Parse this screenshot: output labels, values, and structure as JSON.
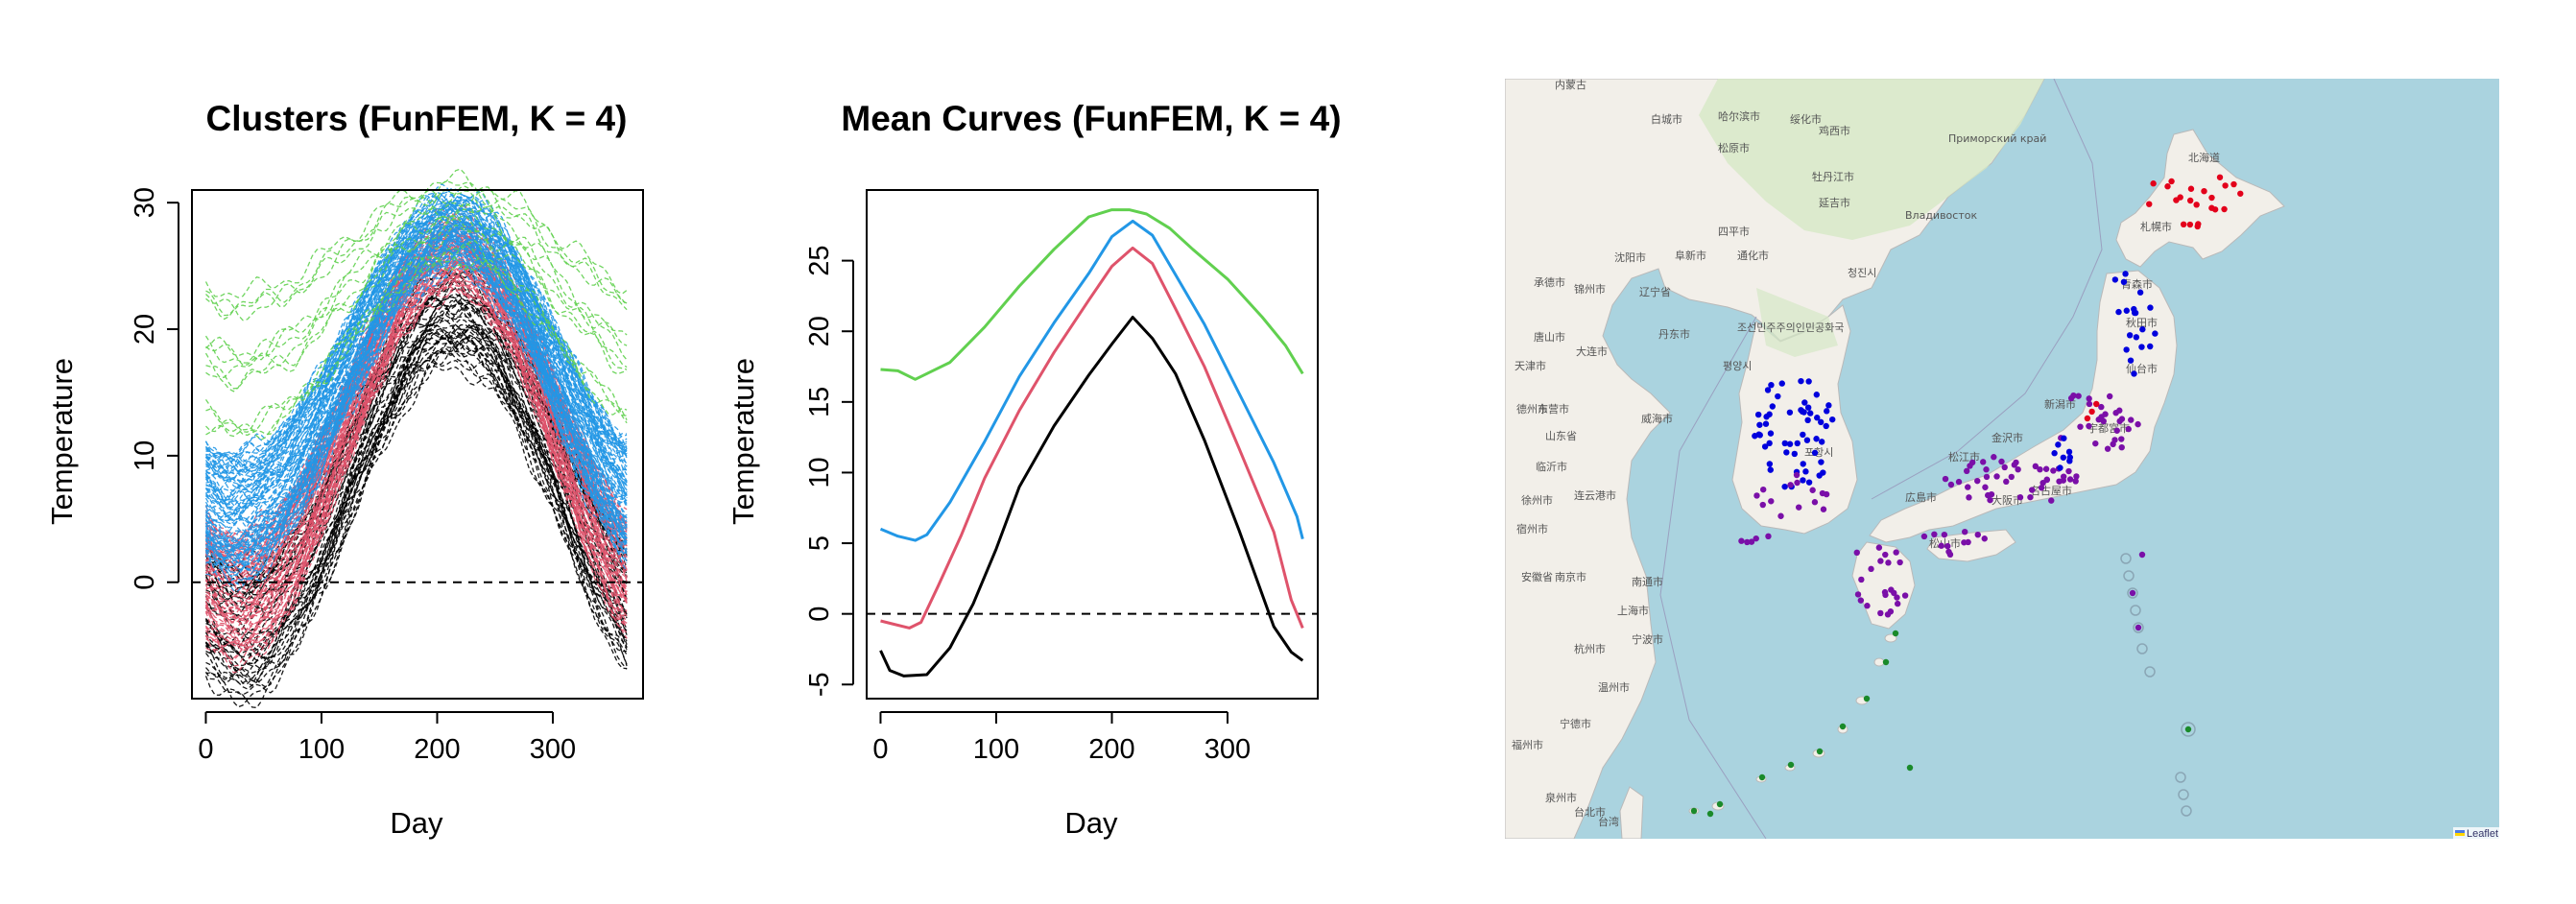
{
  "colors": {
    "cluster_black": "#000000",
    "cluster_red": "#DF536B",
    "cluster_green": "#61D04F",
    "cluster_blue": "#2297E6",
    "sea": "#aad3df",
    "land": "#f2efe9",
    "station_north": "#e3001b",
    "station_central": "#0000dd",
    "station_west": "#7a0fa8",
    "station_south": "#1a8a2a"
  },
  "chart_data": [
    {
      "type": "line",
      "title": "Clusters (FunFEM, K = 4)",
      "xlabel": "Day",
      "ylabel": "Temperature",
      "xlim": [
        -12,
        378
      ],
      "ylim": [
        -9.2,
        31
      ],
      "xticks": [
        0,
        100,
        200,
        300
      ],
      "yticks": [
        0,
        10,
        20,
        30
      ],
      "hline": 0,
      "grid": false,
      "series": [
        {
          "color_key": "cluster_black",
          "count": 46,
          "amp": 12.5,
          "mid": 8.3,
          "min_day": 32,
          "peak_day": 215,
          "spread": 4.0
        },
        {
          "color_key": "cluster_red",
          "count": 70,
          "amp": 13.4,
          "mid": 12.5,
          "min_day": 28,
          "peak_day": 214,
          "spread": 3.4
        },
        {
          "color_key": "cluster_blue",
          "count": 90,
          "amp": 11.3,
          "mid": 16.4,
          "min_day": 25,
          "peak_day": 215,
          "spread": 3.6
        },
        {
          "color_key": "cluster_green",
          "count": 14,
          "amp": 6.0,
          "mid": 22.5,
          "min_day": 28,
          "peak_day": 218,
          "spread": 5.0
        }
      ]
    },
    {
      "type": "line",
      "title": "Mean Curves (FunFEM, K = 4)",
      "xlabel": "Day",
      "ylabel": "Temperature",
      "xlim": [
        -12,
        378
      ],
      "ylim": [
        -6,
        30
      ],
      "xticks": [
        0,
        100,
        200,
        300
      ],
      "yticks": [
        -5,
        0,
        5,
        10,
        15,
        20,
        25
      ],
      "hline": 0,
      "grid": false,
      "series": [
        {
          "color_key": "cluster_green",
          "x": [
            0,
            15,
            30,
            60,
            90,
            120,
            150,
            180,
            200,
            215,
            230,
            250,
            270,
            300,
            330,
            350,
            365
          ],
          "y": [
            17.3,
            17.2,
            16.6,
            17.8,
            20.3,
            23.2,
            25.8,
            28.1,
            28.6,
            28.6,
            28.3,
            27.3,
            25.8,
            23.7,
            21.0,
            19.0,
            17.0
          ]
        },
        {
          "color_key": "cluster_blue",
          "x": [
            0,
            15,
            30,
            40,
            60,
            90,
            120,
            150,
            180,
            200,
            218,
            235,
            255,
            280,
            310,
            340,
            360,
            365
          ],
          "y": [
            6.0,
            5.5,
            5.2,
            5.6,
            7.9,
            12.2,
            16.8,
            20.6,
            24.1,
            26.7,
            27.8,
            26.8,
            24.0,
            20.5,
            15.6,
            10.7,
            6.9,
            5.3
          ]
        },
        {
          "color_key": "cluster_red",
          "x": [
            0,
            10,
            25,
            35,
            50,
            70,
            90,
            120,
            150,
            180,
            200,
            218,
            235,
            255,
            280,
            310,
            340,
            355,
            365
          ],
          "y": [
            -0.5,
            -0.7,
            -1.0,
            -0.6,
            2.0,
            5.6,
            9.6,
            14.4,
            18.5,
            22.2,
            24.6,
            25.9,
            24.8,
            21.6,
            17.5,
            11.7,
            5.8,
            1.0,
            -1.0
          ]
        },
        {
          "color_key": "cluster_black",
          "x": [
            0,
            8,
            20,
            40,
            60,
            80,
            100,
            120,
            150,
            180,
            200,
            218,
            235,
            255,
            280,
            310,
            340,
            355,
            365
          ],
          "y": [
            -2.6,
            -4.0,
            -4.4,
            -4.3,
            -2.4,
            0.7,
            4.6,
            9.0,
            13.3,
            16.9,
            19.1,
            21.0,
            19.5,
            17.0,
            12.3,
            5.9,
            -0.9,
            -2.7,
            -3.3
          ]
        }
      ]
    }
  ],
  "map": {
    "attribution": "Leaflet",
    "place_labels": [
      "内蒙古",
      "白城市",
      "哈尔滨市",
      "松原市",
      "绥化市",
      "鸡西市",
      "牡丹江市",
      "延吉市",
      "Владивосток",
      "Приморский край",
      "四平市",
      "阜新市",
      "沈阳市",
      "通化市",
      "承德市",
      "锦州市",
      "辽宁省",
      "大连市",
      "丹东市",
      "唐山市",
      "天津市",
      "평양시",
      "조선민주주의인민공화국",
      "청진시",
      "德州市",
      "东营市",
      "威海市",
      "山东省",
      "临沂市",
      "连云港市",
      "徐州市",
      "宿州市",
      "安徽省",
      "南京市",
      "南通市",
      "上海市",
      "杭州市",
      "宁波市",
      "温州市",
      "宁德市",
      "福州市",
      "台北市",
      "泉州市",
      "台湾",
      "포항시",
      "北海道",
      "札幌市",
      "青森市",
      "秋田市",
      "仙台市",
      "新潟市",
      "宇都宮市",
      "金沢市",
      "広島市",
      "松江市",
      "大阪市",
      "名古屋市",
      "松山市"
    ]
  }
}
